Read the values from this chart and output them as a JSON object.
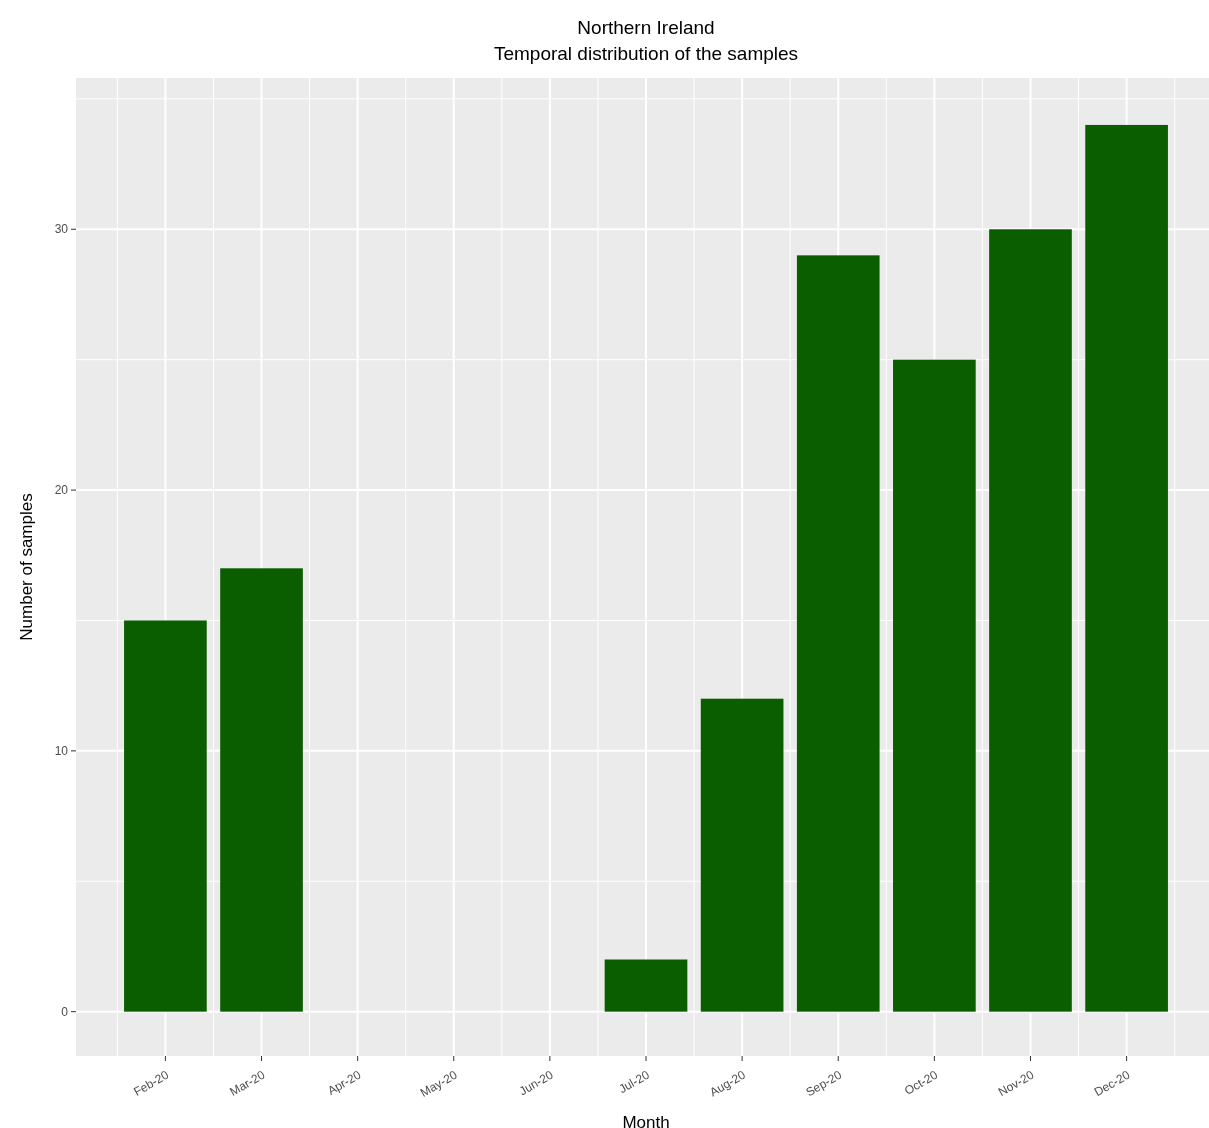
{
  "chart_data": {
    "type": "bar",
    "title": "Northern Ireland",
    "subtitle": "Temporal distribution of the samples",
    "xlabel": "Month",
    "ylabel": "Number of samples",
    "categories": [
      "Feb-20",
      "Mar-20",
      "Apr-20",
      "May-20",
      "Jun-20",
      "Jul-20",
      "Aug-20",
      "Sep-20",
      "Oct-20",
      "Nov-20",
      "Dec-20"
    ],
    "values": [
      15,
      17,
      null,
      null,
      null,
      2,
      12,
      29,
      25,
      30,
      34
    ],
    "color": "#0b5e00",
    "ylim": [
      -1.7,
      35.8
    ],
    "yticks": [
      0,
      10,
      20,
      30
    ],
    "grid": true
  }
}
